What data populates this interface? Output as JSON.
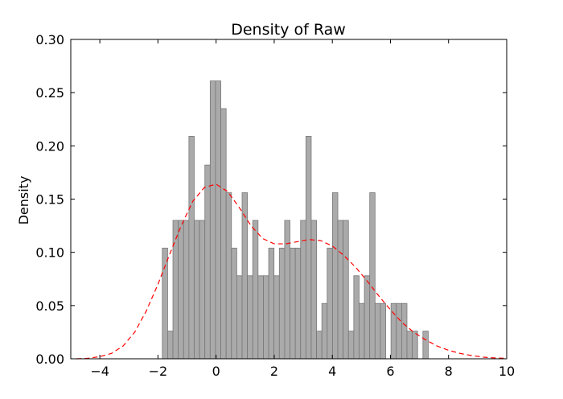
{
  "chart_data": {
    "type": "bar",
    "title": "Density of Raw",
    "xlabel": "",
    "ylabel": "Density",
    "xlim": [
      -5,
      10
    ],
    "ylim": [
      0.0,
      0.3
    ],
    "x_ticks": [
      "−4",
      "−2",
      "0",
      "2",
      "4",
      "6",
      "8",
      "10"
    ],
    "x_tick_values": [
      -4,
      -2,
      0,
      2,
      4,
      6,
      8,
      10
    ],
    "y_ticks": [
      "0.00",
      "0.05",
      "0.10",
      "0.15",
      "0.20",
      "0.25",
      "0.30"
    ],
    "y_tick_values": [
      0.0,
      0.05,
      0.1,
      0.15,
      0.2,
      0.25,
      0.3
    ],
    "grid": false,
    "histogram": {
      "name": "histogram",
      "bin_width": 0.183,
      "bin_starts": [
        -1.85,
        -1.667,
        -1.484,
        -1.301,
        -1.118,
        -0.935,
        -0.752,
        -0.569,
        -0.386,
        -0.203,
        -0.02,
        0.163,
        0.346,
        0.529,
        0.712,
        0.895,
        1.078,
        1.261,
        1.444,
        1.627,
        1.81,
        1.993,
        2.176,
        2.359,
        2.542,
        2.725,
        2.908,
        3.091,
        3.274,
        3.457,
        3.64,
        3.823,
        4.006,
        4.189,
        4.372,
        4.555,
        4.738,
        4.921,
        5.104,
        5.287,
        5.47,
        5.653,
        5.836,
        6.019,
        6.202,
        6.385,
        6.568,
        6.751,
        6.934,
        7.117,
        7.3,
        7.483,
        7.666
      ],
      "values": [
        0.104,
        0.026,
        0.13,
        0.13,
        0.13,
        0.209,
        0.13,
        0.13,
        0.182,
        0.261,
        0.261,
        0.235,
        0.156,
        0.104,
        0.078,
        0.156,
        0.078,
        0.13,
        0.078,
        0.078,
        0.104,
        0.078,
        0.104,
        0.13,
        0.104,
        0.104,
        0.13,
        0.209,
        0.13,
        0.026,
        0.052,
        0.104,
        0.156,
        0.13,
        0.13,
        0.026,
        0.078,
        0.052,
        0.078,
        0.156,
        0.052,
        0.052,
        0.0,
        0.052,
        0.052,
        0.052,
        0.026,
        0.026,
        0.0,
        0.026,
        0.0,
        0.0,
        0.0
      ],
      "color": "#aaaaaa",
      "edge_color": "#777777"
    },
    "density": {
      "name": "density",
      "style": "dashed",
      "color": "#ff0000",
      "x": [
        -4.8,
        -4.4,
        -4.0,
        -3.6,
        -3.2,
        -2.8,
        -2.4,
        -2.0,
        -1.6,
        -1.2,
        -0.8,
        -0.4,
        0.0,
        0.4,
        0.8,
        1.2,
        1.6,
        2.0,
        2.4,
        2.8,
        3.2,
        3.6,
        4.0,
        4.4,
        4.8,
        5.2,
        5.6,
        6.0,
        6.4,
        6.8,
        7.2,
        7.6,
        8.0,
        8.4,
        8.8,
        9.2,
        9.6,
        10.0
      ],
      "y": [
        0.0,
        0.0005,
        0.002,
        0.005,
        0.012,
        0.025,
        0.045,
        0.07,
        0.098,
        0.125,
        0.148,
        0.161,
        0.164,
        0.157,
        0.142,
        0.125,
        0.113,
        0.108,
        0.108,
        0.11,
        0.112,
        0.111,
        0.106,
        0.097,
        0.086,
        0.073,
        0.059,
        0.046,
        0.034,
        0.025,
        0.018,
        0.012,
        0.008,
        0.005,
        0.003,
        0.0015,
        0.0008,
        0.0004
      ]
    }
  }
}
